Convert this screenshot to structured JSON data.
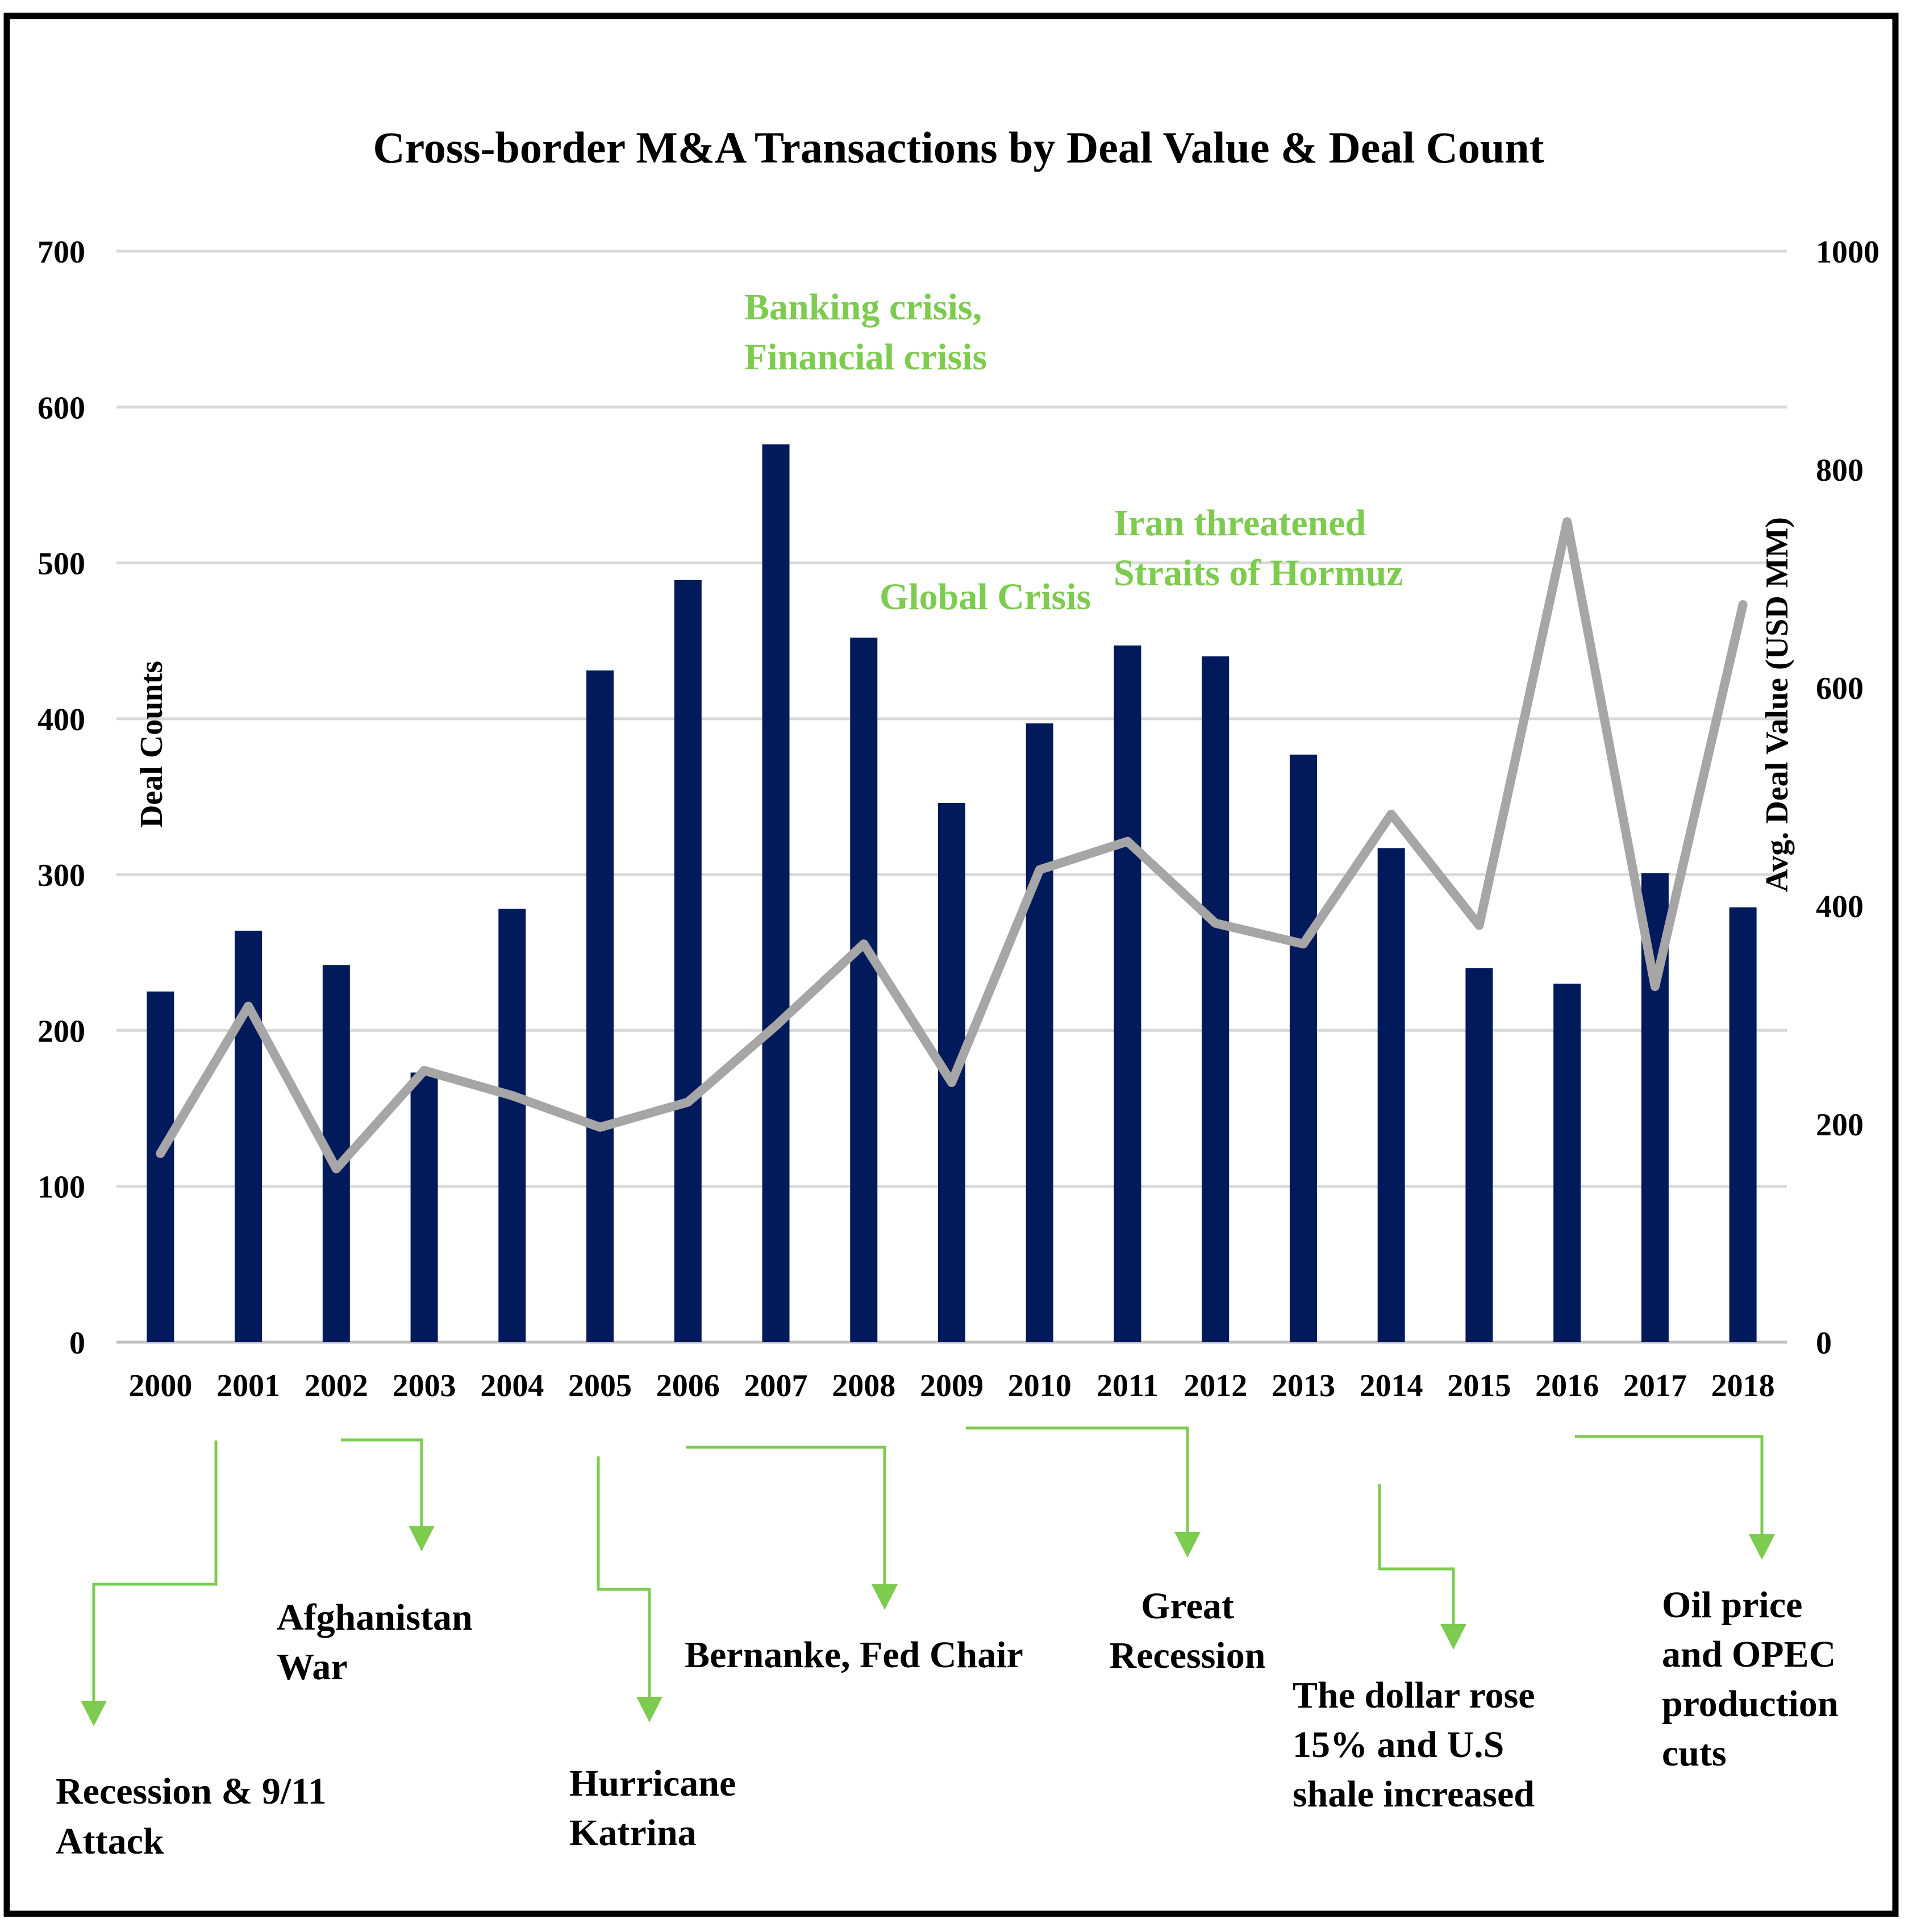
{
  "chart_data": {
    "type": "bar+line",
    "title": "Cross-border M&A Transactions by Deal Value & Deal Count",
    "categories": [
      "2000",
      "2001",
      "2002",
      "2003",
      "2004",
      "2005",
      "2006",
      "2007",
      "2008",
      "2009",
      "2010",
      "2011",
      "2012",
      "2013",
      "2014",
      "2015",
      "2016",
      "2017",
      "2018"
    ],
    "series": [
      {
        "name": "Deal Counts",
        "type": "bar",
        "axis": "left",
        "color": "#001a5c",
        "values": [
          225,
          264,
          242,
          173,
          278,
          431,
          489,
          576,
          452,
          346,
          397,
          447,
          440,
          377,
          317,
          240,
          230,
          301,
          279
        ]
      },
      {
        "name": "Avg. Deal Value (USD MM)",
        "type": "line",
        "axis": "right",
        "color": "#a6a6a6",
        "values": [
          173,
          308,
          159,
          249,
          226,
          197,
          220,
          290,
          365,
          238,
          433,
          459,
          384,
          365,
          484,
          382,
          752,
          326,
          676
        ]
      }
    ],
    "y_left": {
      "label": "Deal Counts",
      "ylim": [
        0,
        700
      ],
      "ticks": [
        "0",
        "100",
        "200",
        "300",
        "400",
        "500",
        "600",
        "700"
      ]
    },
    "y_right": {
      "label": "Avg. Deal Value (USD MM)",
      "ylim": [
        0,
        1000
      ],
      "ticks": [
        "0",
        "200",
        "400",
        "600",
        "800",
        "1000"
      ]
    },
    "grid": true,
    "annotations_in_plot": [
      {
        "id": "banking",
        "lines": [
          "Banking crisis,",
          "Financial crisis"
        ]
      },
      {
        "id": "global",
        "lines": [
          "Global Crisis"
        ]
      },
      {
        "id": "iran",
        "lines": [
          "Iran threatened",
          "Straits of Hormuz"
        ]
      }
    ],
    "annotations_below": [
      {
        "id": "recession",
        "year": "2001",
        "lines": [
          "Recession & 9/11",
          "Attack"
        ]
      },
      {
        "id": "afghan",
        "year": "2002",
        "lines": [
          "Afghanistan",
          "War"
        ]
      },
      {
        "id": "katrina",
        "year": "2005",
        "lines": [
          "Hurricane",
          "Katrina"
        ]
      },
      {
        "id": "bernanke",
        "year": "2006",
        "lines": [
          "Bernanke, Fed Chair"
        ]
      },
      {
        "id": "great",
        "year": "2009",
        "lines": [
          "Great",
          "Recession"
        ]
      },
      {
        "id": "dollar",
        "year": "2014",
        "lines": [
          "The dollar rose",
          "15% and U.S",
          "shale increased"
        ]
      },
      {
        "id": "oil",
        "year": "2016",
        "lines": [
          "Oil price",
          "and OPEC",
          "production",
          "cuts"
        ]
      }
    ],
    "arrow_color": "#7dcb4f"
  }
}
